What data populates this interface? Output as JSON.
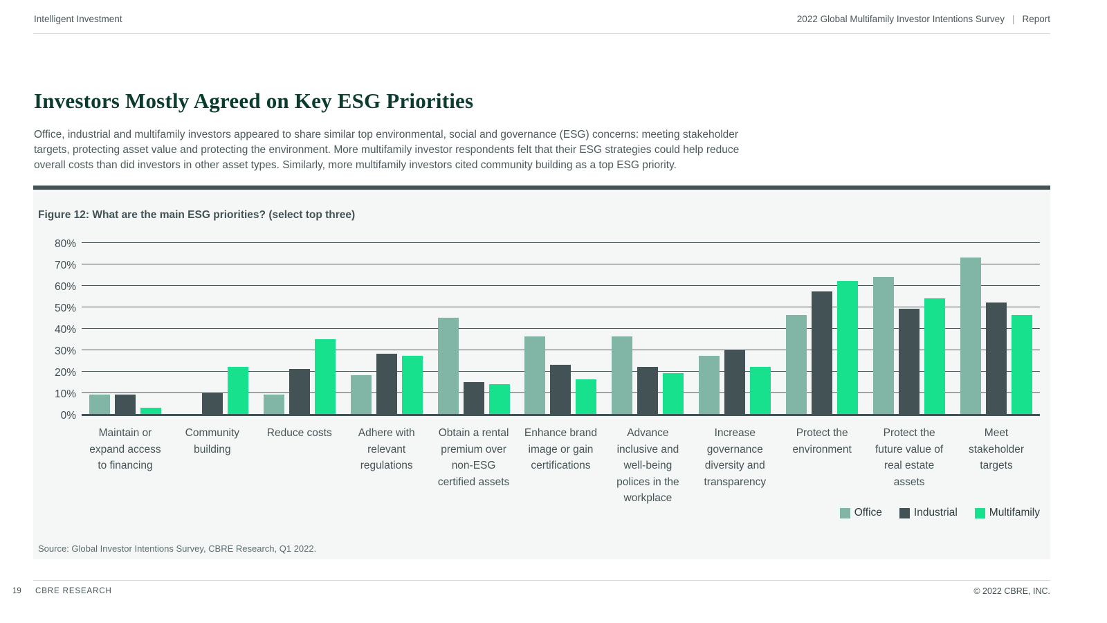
{
  "header": {
    "left": "Intelligent Investment",
    "right_title": "2022 Global Multifamily Investor Intentions Survey",
    "right_separator": "|",
    "right_label": "Report"
  },
  "main": {
    "title": "Investors Mostly Agreed on Key ESG Priorities",
    "paragraph": "Office, industrial and multifamily investors appeared to share similar top environmental, social and governance (ESG) concerns: meeting stakeholder targets, protecting asset value and protecting the environment. More multifamily investor respondents felt that their ESG strategies could help reduce overall costs than did investors in other asset types. Similarly, more multifamily investors cited community building as a top ESG priority."
  },
  "figure": {
    "title": "Figure 12: What are the main ESG priorities? (select top three)",
    "source": "Source: Global Investor Intentions Survey, CBRE Research, Q1 2022."
  },
  "chart_data": {
    "type": "bar",
    "title": "Figure 12: What are the main ESG priorities? (select top three)",
    "categories": [
      "Maintain or expand access to financing",
      "Community building",
      "Reduce costs",
      "Adhere with relevant regulations",
      "Obtain a rental premium over non-ESG certified assets",
      "Enhance brand image or gain certifications",
      "Advance inclusive and well-being polices in the workplace",
      "Increase governance diversity and transparency",
      "Protect the environment",
      "Protect the future value of real estate assets",
      "Meet stakeholder targets"
    ],
    "series": [
      {
        "name": "Office",
        "color": "#81b5a5",
        "values": [
          9,
          0,
          9,
          18,
          45,
          36,
          36,
          27,
          46,
          64,
          73
        ]
      },
      {
        "name": "Industrial",
        "color": "#435254",
        "values": [
          9,
          10,
          21,
          28,
          15,
          23,
          22,
          30,
          57,
          49,
          52
        ]
      },
      {
        "name": "Multifamily",
        "color": "#17e18c",
        "values": [
          3,
          22,
          35,
          27,
          14,
          16,
          19,
          22,
          62,
          54,
          46
        ]
      }
    ],
    "xlabel": "",
    "ylabel": "",
    "ylim": [
      0,
      80
    ],
    "ytick_step": 10,
    "ytick_suffix": "%",
    "grid": true,
    "legend_position": "bottom-right",
    "colors": {
      "panel_background": "#f5f6f6",
      "panel_top_bar": "#435254",
      "gridline": "#4a5658",
      "baseline": "#435254",
      "title_green": "#0b3a2f"
    }
  },
  "footer": {
    "page_number": "19",
    "left_label": "CBRE RESEARCH",
    "right_label": "© 2022 CBRE, INC."
  }
}
